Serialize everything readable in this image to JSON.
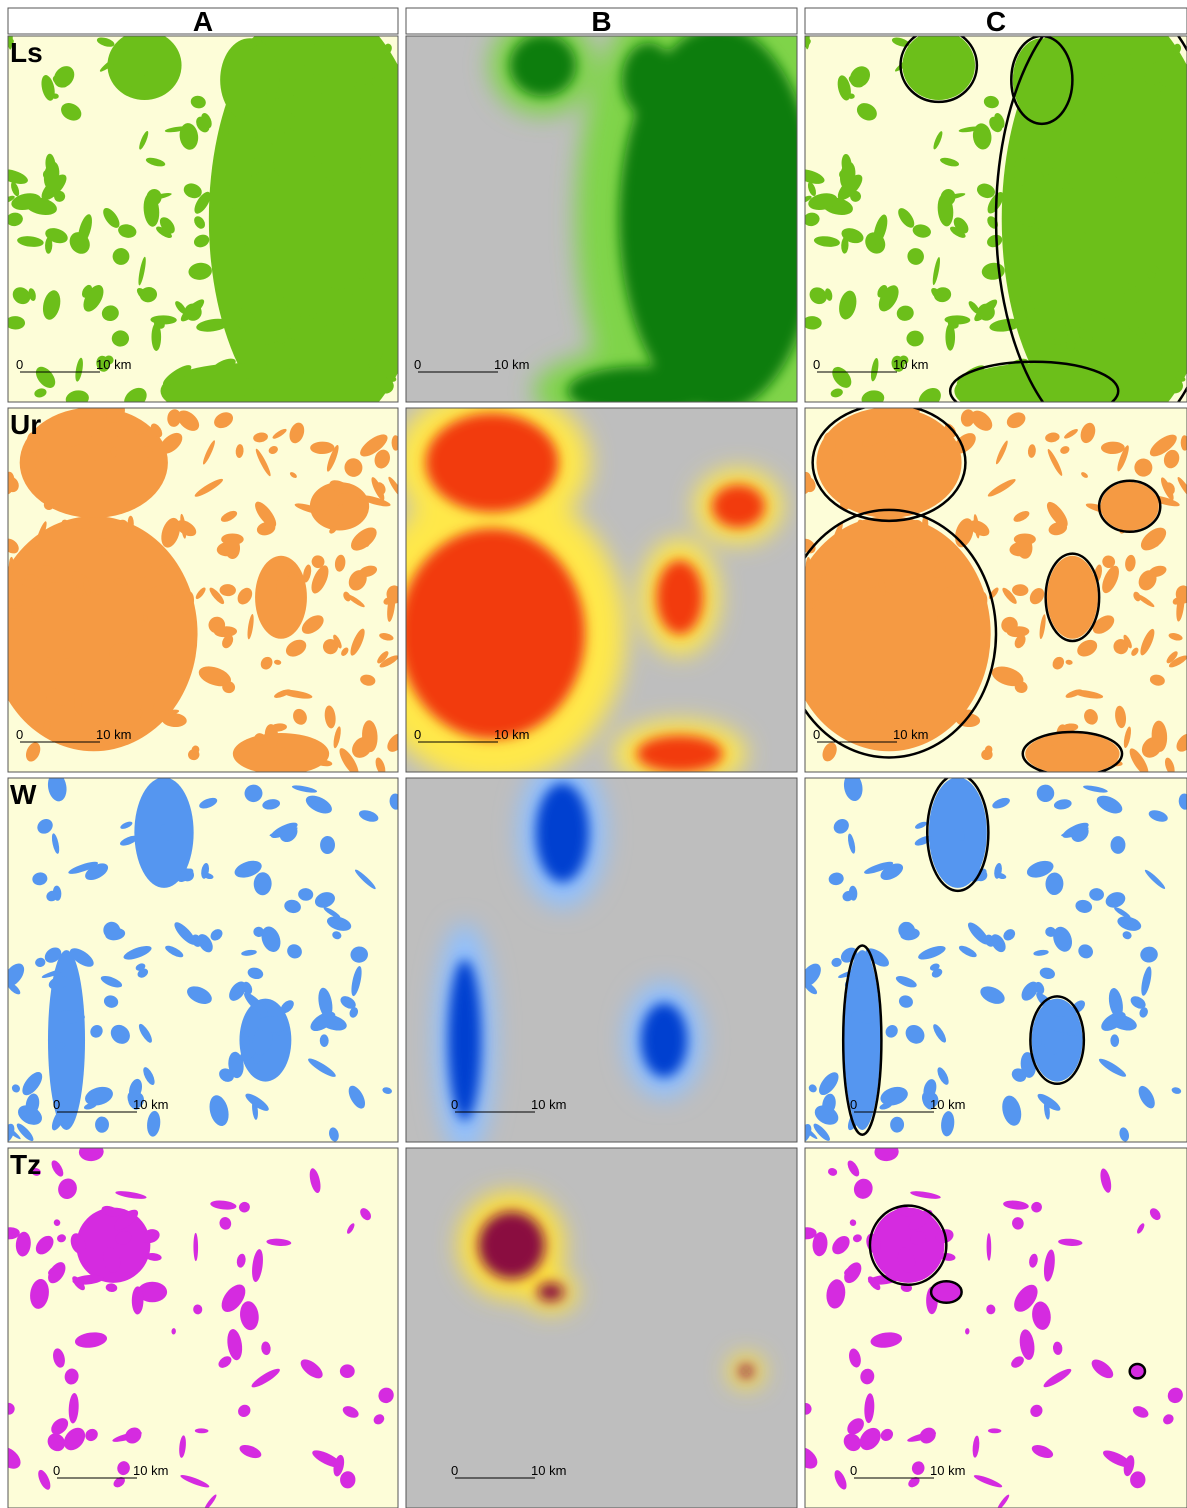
{
  "columns": [
    "A",
    "B",
    "C"
  ],
  "rows": [
    "Ls",
    "Ur",
    "W",
    "Tz"
  ],
  "scale_bar": [
    "0",
    "10 km"
  ]
}
